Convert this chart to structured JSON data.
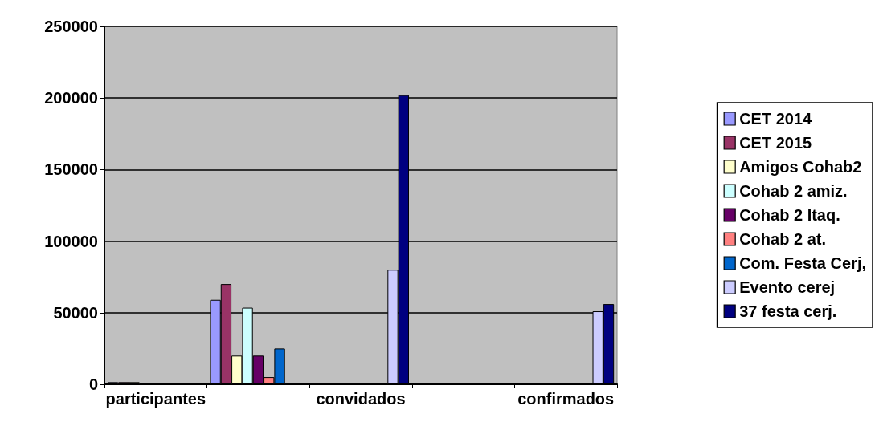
{
  "chart_data": {
    "type": "bar",
    "categories": [
      "participantes",
      null,
      "convidados",
      null,
      "confirmados"
    ],
    "series": [
      {
        "name": "CET 2014",
        "color": "#9999ff",
        "values": [
          1500,
          59000,
          null,
          null,
          null
        ]
      },
      {
        "name": "CET 2015",
        "color": "#993366",
        "values": [
          1500,
          70000,
          null,
          null,
          null
        ]
      },
      {
        "name": "Amigos Cohab2",
        "color": "#ffffcc",
        "values": [
          1500,
          20000,
          null,
          null,
          null
        ]
      },
      {
        "name": "Cohab 2 amiz.",
        "color": "#ccffff",
        "values": [
          null,
          53500,
          null,
          null,
          null
        ]
      },
      {
        "name": "Cohab 2 Itaq.",
        "color": "#660066",
        "values": [
          null,
          20000,
          null,
          null,
          null
        ]
      },
      {
        "name": "Cohab 2 at.",
        "color": "#ff8080",
        "values": [
          null,
          5000,
          null,
          null,
          null
        ]
      },
      {
        "name": "Com. Festa Cerj,",
        "color": "#0066cc",
        "values": [
          null,
          25000,
          null,
          null,
          null
        ]
      },
      {
        "name": "Evento cerej",
        "color": "#ccccff",
        "values": [
          null,
          null,
          80000,
          null,
          51000
        ]
      },
      {
        "name": "37 festa cerj.",
        "color": "#000080",
        "values": [
          null,
          null,
          202000,
          null,
          56000
        ]
      }
    ],
    "ylim": [
      0,
      250000
    ],
    "yticks": [
      0,
      50000,
      100000,
      150000,
      200000,
      250000
    ],
    "grid": "y",
    "legend": "right"
  }
}
